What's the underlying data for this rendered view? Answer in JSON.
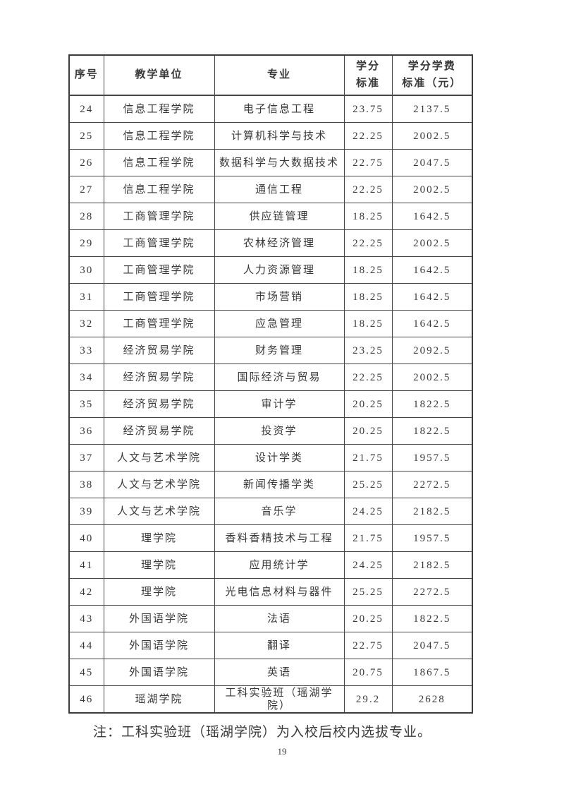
{
  "table": {
    "columns": [
      {
        "key": "no",
        "label": "序号"
      },
      {
        "key": "unit",
        "label": "教学单位"
      },
      {
        "key": "major",
        "label": "专业"
      },
      {
        "key": "credit",
        "label": "学分\n标准"
      },
      {
        "key": "tuition",
        "label": "学分学费\n标准（元）"
      }
    ],
    "rows": [
      [
        "24",
        "信息工程学院",
        "电子信息工程",
        "23.75",
        "2137.5"
      ],
      [
        "25",
        "信息工程学院",
        "计算机科学与技术",
        "22.25",
        "2002.5"
      ],
      [
        "26",
        "信息工程学院",
        "数据科学与大数据技术",
        "22.75",
        "2047.5"
      ],
      [
        "27",
        "信息工程学院",
        "通信工程",
        "22.25",
        "2002.5"
      ],
      [
        "28",
        "工商管理学院",
        "供应链管理",
        "18.25",
        "1642.5"
      ],
      [
        "29",
        "工商管理学院",
        "农林经济管理",
        "22.25",
        "2002.5"
      ],
      [
        "30",
        "工商管理学院",
        "人力资源管理",
        "18.25",
        "1642.5"
      ],
      [
        "31",
        "工商管理学院",
        "市场营销",
        "18.25",
        "1642.5"
      ],
      [
        "32",
        "工商管理学院",
        "应急管理",
        "18.25",
        "1642.5"
      ],
      [
        "33",
        "经济贸易学院",
        "财务管理",
        "23.25",
        "2092.5"
      ],
      [
        "34",
        "经济贸易学院",
        "国际经济与贸易",
        "22.25",
        "2002.5"
      ],
      [
        "35",
        "经济贸易学院",
        "审计学",
        "20.25",
        "1822.5"
      ],
      [
        "36",
        "经济贸易学院",
        "投资学",
        "20.25",
        "1822.5"
      ],
      [
        "37",
        "人文与艺术学院",
        "设计学类",
        "21.75",
        "1957.5"
      ],
      [
        "38",
        "人文与艺术学院",
        "新闻传播学类",
        "25.25",
        "2272.5"
      ],
      [
        "39",
        "人文与艺术学院",
        "音乐学",
        "24.25",
        "2182.5"
      ],
      [
        "40",
        "理学院",
        "香料香精技术与工程",
        "21.75",
        "1957.5"
      ],
      [
        "41",
        "理学院",
        "应用统计学",
        "24.25",
        "2182.5"
      ],
      [
        "42",
        "理学院",
        "光电信息材料与器件",
        "25.25",
        "2272.5"
      ],
      [
        "43",
        "外国语学院",
        "法语",
        "20.25",
        "1822.5"
      ],
      [
        "44",
        "外国语学院",
        "翻译",
        "22.75",
        "2047.5"
      ],
      [
        "45",
        "外国语学院",
        "英语",
        "20.75",
        "1867.5"
      ],
      [
        "46",
        "瑶湖学院",
        "工科实验班（瑶湖学院）",
        "29.2",
        "2628"
      ]
    ]
  },
  "footer": {
    "note": "注：工科实验班（瑶湖学院）为入校后校内选拔专业。",
    "page_number": "19"
  },
  "colors": {
    "page_background": "#ffffff",
    "text": "#383838",
    "table_border": "#454545"
  }
}
